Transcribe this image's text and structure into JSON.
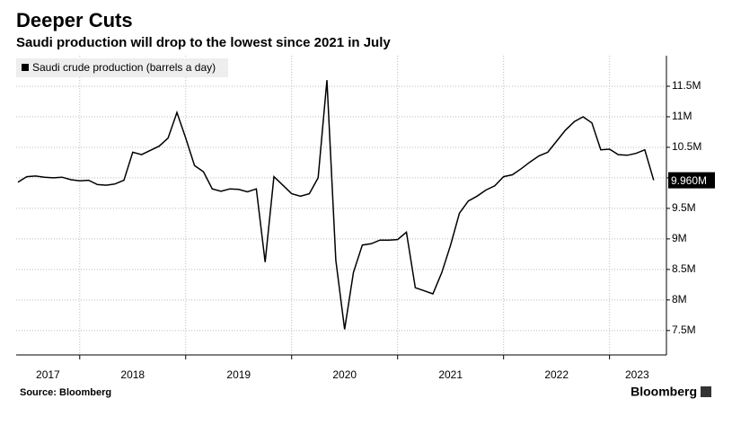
{
  "chart_data": {
    "type": "line",
    "title": "Deeper Cuts",
    "subtitle": "Saudi production will drop to the lowest since 2021 in July",
    "source": "Source: Bloomberg",
    "brand": "Bloomberg",
    "legend": "top-left",
    "grid": true,
    "x": [
      2017.417,
      2017.5,
      2017.583,
      2017.667,
      2017.75,
      2017.833,
      2017.917,
      2018.0,
      2018.083,
      2018.167,
      2018.25,
      2018.333,
      2018.417,
      2018.5,
      2018.583,
      2018.667,
      2018.75,
      2018.833,
      2018.917,
      2019.0,
      2019.083,
      2019.167,
      2019.25,
      2019.333,
      2019.417,
      2019.5,
      2019.583,
      2019.667,
      2019.75,
      2019.833,
      2019.917,
      2020.0,
      2020.083,
      2020.167,
      2020.25,
      2020.333,
      2020.417,
      2020.5,
      2020.583,
      2020.667,
      2020.75,
      2020.833,
      2020.917,
      2021.0,
      2021.083,
      2021.167,
      2021.25,
      2021.333,
      2021.417,
      2021.5,
      2021.583,
      2021.667,
      2021.75,
      2021.833,
      2021.917,
      2022.0,
      2022.083,
      2022.167,
      2022.25,
      2022.333,
      2022.417,
      2022.5,
      2022.583,
      2022.667,
      2022.75,
      2022.833,
      2022.917,
      2023.0,
      2023.083,
      2023.167,
      2023.25,
      2023.333,
      2023.417
    ],
    "series": [
      {
        "name": "Saudi crude production (barrels a day)",
        "color": "#000000",
        "values": [
          9930000,
          10020000,
          10030000,
          10010000,
          10000000,
          10010000,
          9970000,
          9950000,
          9960000,
          9890000,
          9880000,
          9900000,
          9960000,
          10420000,
          10380000,
          10450000,
          10520000,
          10650000,
          11070000,
          10650000,
          10200000,
          10100000,
          9820000,
          9780000,
          9820000,
          9810000,
          9770000,
          9820000,
          8620000,
          10020000,
          9880000,
          9740000,
          9700000,
          9740000,
          10000000,
          11600000,
          8650000,
          7520000,
          8450000,
          8900000,
          8920000,
          8980000,
          8980000,
          8990000,
          9110000,
          8200000,
          8150000,
          8100000,
          8450000,
          8900000,
          9420000,
          9620000,
          9700000,
          9800000,
          9870000,
          10020000,
          10050000,
          10150000,
          10260000,
          10360000,
          10420000,
          10600000,
          10780000,
          10920000,
          11000000,
          10900000,
          10460000,
          10470000,
          10380000,
          10370000,
          10400000,
          10460000,
          9960000
        ],
        "value_labels": [
          null,
          null,
          null,
          null,
          null,
          null,
          null,
          null,
          null,
          null,
          null,
          null,
          null,
          null,
          null,
          null,
          null,
          null,
          null,
          null,
          null,
          null,
          null,
          null,
          null,
          null,
          null,
          null,
          null,
          null,
          null,
          null,
          null,
          null,
          null,
          null,
          null,
          null,
          null,
          null,
          null,
          null,
          null,
          null,
          null,
          null,
          null,
          null,
          null,
          null,
          null,
          null,
          null,
          null,
          null,
          null,
          null,
          null,
          null,
          null,
          null,
          null,
          null,
          null,
          null,
          null,
          null,
          null,
          null,
          null,
          null,
          null,
          "9.960M"
        ]
      }
    ],
    "xlim": [
      2017.4,
      2023.52
    ],
    "xticks": [
      2017,
      2018,
      2019,
      2020,
      2021,
      2022,
      2023
    ],
    "ylim": [
      7100000,
      12000000
    ],
    "yticks": [
      {
        "value": 7500000,
        "label": "7.5M"
      },
      {
        "value": 8000000,
        "label": "8M"
      },
      {
        "value": 8500000,
        "label": "8.5M"
      },
      {
        "value": 9000000,
        "label": "9M"
      },
      {
        "value": 9500000,
        "label": "9.5M"
      },
      {
        "value": 10000000,
        "label": "10M"
      },
      {
        "value": 10500000,
        "label": "10.5M"
      },
      {
        "value": 11000000,
        "label": "11M"
      },
      {
        "value": 11500000,
        "label": "11.5M"
      }
    ]
  }
}
